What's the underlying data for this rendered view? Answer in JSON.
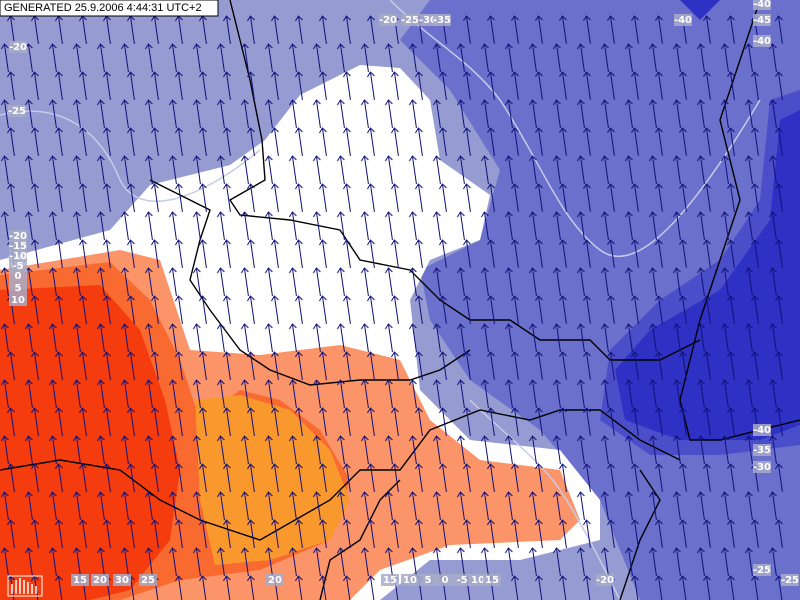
{
  "header": {
    "generated": "GENERATED 25.9.2006 4:44:31 UTC+2"
  },
  "contour_labels": [
    "-20",
    "-25",
    "-20",
    "-15",
    "-10",
    "-5",
    "0",
    "5",
    "10",
    "-20",
    "-25",
    "-30",
    "-35",
    "-40",
    "-40",
    "-45",
    "-40",
    "-40",
    "-35",
    "-30",
    "-25",
    "-25",
    "15",
    "20",
    "30",
    "25",
    "20",
    "15",
    "10",
    "5",
    "0",
    "-5",
    "10",
    "15",
    "-20"
  ]
}
